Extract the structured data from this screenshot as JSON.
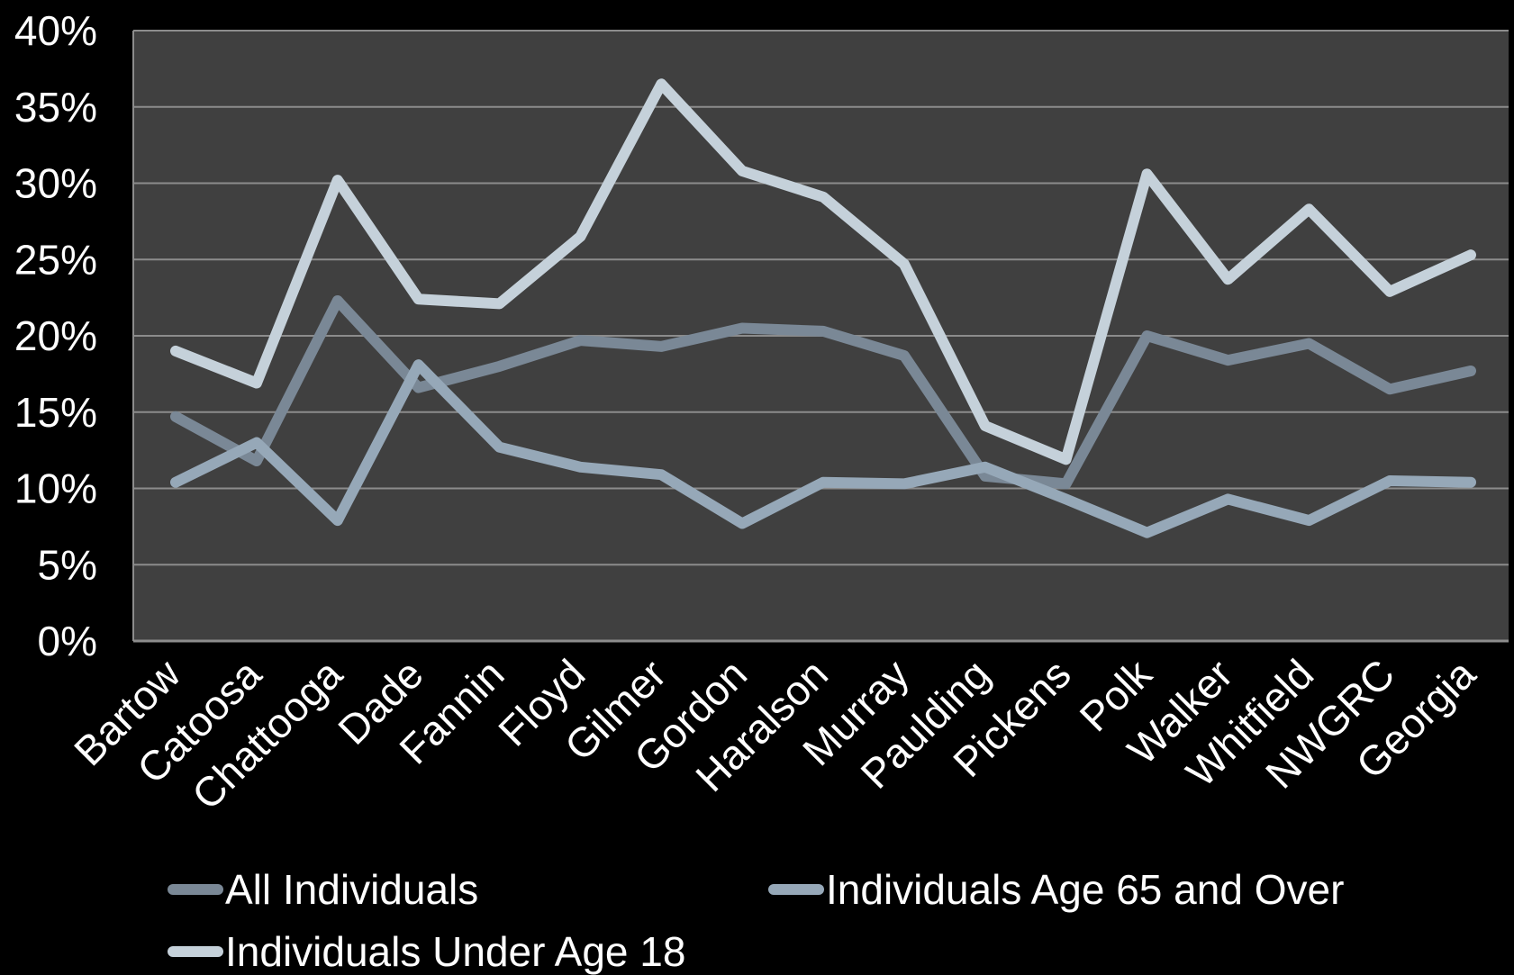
{
  "chart_data": {
    "type": "line",
    "title": "",
    "xlabel": "",
    "ylabel": "",
    "ylim": [
      0,
      40
    ],
    "y_tick_values": [
      0,
      5,
      10,
      15,
      20,
      25,
      30,
      35,
      40
    ],
    "y_tick_labels": [
      "0%",
      "5%",
      "10%",
      "15%",
      "20%",
      "25%",
      "30%",
      "35%",
      "40%"
    ],
    "grid": true,
    "legend_position": "bottom",
    "categories": [
      "Bartow",
      "Catoosa",
      "Chattooga",
      "Dade",
      "Fannin",
      "Floyd",
      "Gilmer",
      "Gordon",
      "Haralson",
      "Murray",
      "Paulding",
      "Pickens",
      "Polk",
      "Walker",
      "Whitfield",
      "NWGRC",
      "Georgia"
    ],
    "series": [
      {
        "name": "All Individuals",
        "color": "#7a8896",
        "values": [
          14.7,
          11.8,
          22.3,
          16.6,
          18.0,
          19.7,
          19.3,
          20.5,
          20.3,
          18.7,
          10.8,
          10.3,
          20.0,
          18.4,
          19.5,
          16.5,
          17.7
        ]
      },
      {
        "name": "Individuals Age 65 and Over",
        "color": "#96a8b8",
        "values": [
          10.4,
          13.0,
          7.9,
          18.1,
          12.7,
          11.4,
          10.9,
          7.7,
          10.4,
          10.3,
          11.4,
          9.3,
          7.1,
          9.3,
          7.9,
          10.5,
          10.4
        ]
      },
      {
        "name": "Individuals Under Age 18",
        "color": "#c5d1da",
        "values": [
          19.0,
          16.9,
          30.2,
          22.4,
          22.1,
          26.5,
          36.5,
          30.8,
          29.1,
          24.7,
          14.1,
          11.9,
          30.6,
          23.7,
          28.3,
          22.9,
          25.3
        ]
      }
    ]
  },
  "legend": {
    "items": [
      {
        "label": "All Individuals",
        "color": "#7a8896"
      },
      {
        "label": "Individuals Age 65 and Over",
        "color": "#96a8b8"
      },
      {
        "label": "Individuals Under Age 18",
        "color": "#c5d1da"
      }
    ]
  }
}
